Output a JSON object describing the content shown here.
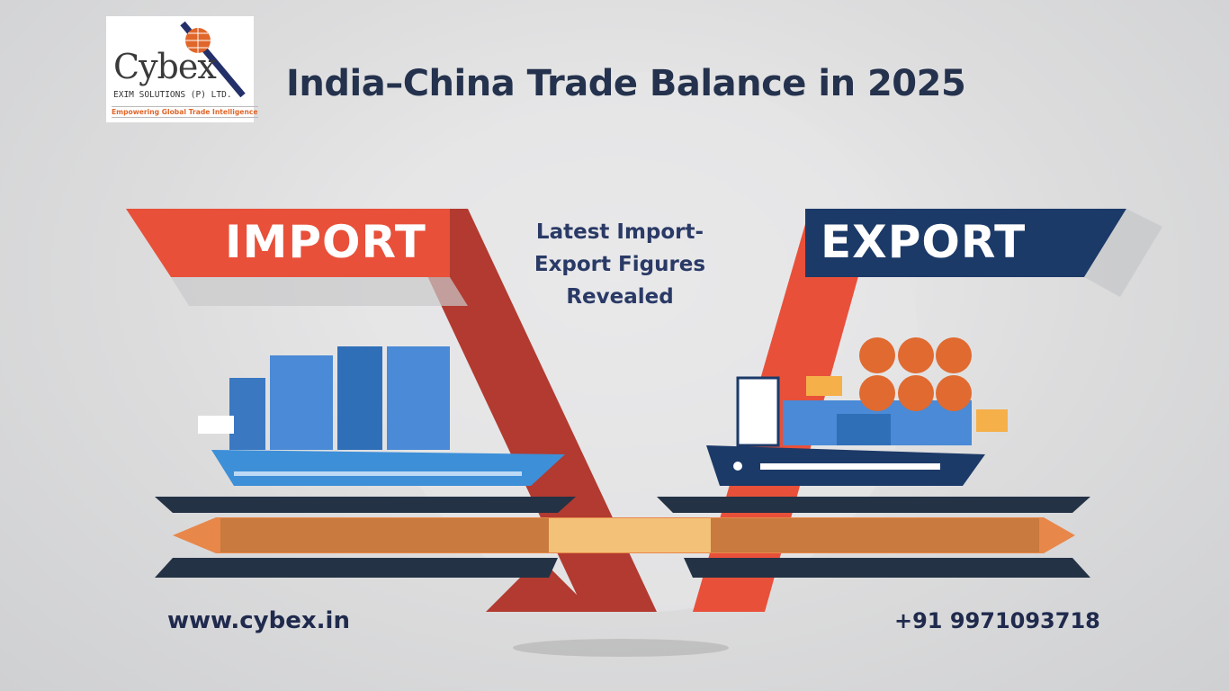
{
  "logo": {
    "brand": "Cybex",
    "company": "EXIM SOLUTIONS (P) LTD.",
    "tagline": "Empowering Global Trade Intelligence"
  },
  "title": "India–China Trade Balance in 2025",
  "import_label": "IMPORT",
  "export_label": "EXPORT",
  "subtitle": "Latest Import-Export Figures Revealed",
  "footer": {
    "website": "www.cybex.in",
    "phone": "+91 9971093718"
  },
  "colors": {
    "red": "#e8503a",
    "dark_red": "#b23a30",
    "navy": "#1c3a68",
    "orange": "#e07a3a",
    "text_dark": "#25324d"
  }
}
